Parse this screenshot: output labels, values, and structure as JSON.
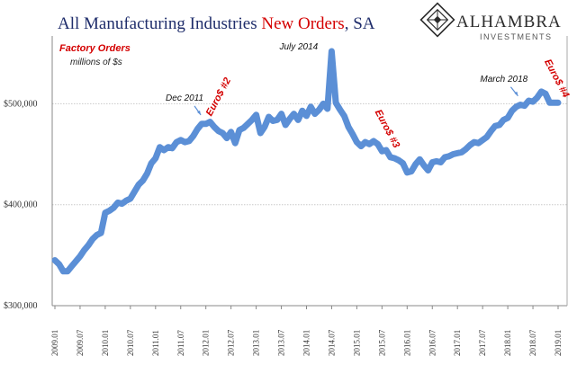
{
  "title": {
    "part1": "All Manufacturing Industries ",
    "accent": "New Orders",
    "part2": ", SA"
  },
  "brand": {
    "name": "ALHAMBRA",
    "sub": "INVESTMENTS",
    "logo_icon": "diamond-lattice-icon"
  },
  "colors": {
    "line": "#5b8fd6",
    "title": "#1f2d6b",
    "accent": "#d40000",
    "grid": "#c9c9c9"
  },
  "chart_data": {
    "type": "line",
    "series": [
      {
        "name": "Factory Orders",
        "unit": "millions of $s",
        "x": [
          "2009.01",
          "2009.02",
          "2009.03",
          "2009.04",
          "2009.05",
          "2009.06",
          "2009.07",
          "2009.08",
          "2009.09",
          "2009.10",
          "2009.11",
          "2009.12",
          "2010.01",
          "2010.02",
          "2010.03",
          "2010.04",
          "2010.05",
          "2010.06",
          "2010.07",
          "2010.08",
          "2010.09",
          "2010.10",
          "2010.11",
          "2010.12",
          "2011.01",
          "2011.02",
          "2011.03",
          "2011.04",
          "2011.05",
          "2011.06",
          "2011.07",
          "2011.08",
          "2011.09",
          "2011.10",
          "2011.11",
          "2011.12",
          "2012.01",
          "2012.02",
          "2012.03",
          "2012.04",
          "2012.05",
          "2012.06",
          "2012.07",
          "2012.08",
          "2012.09",
          "2012.10",
          "2012.11",
          "2012.12",
          "2013.01",
          "2013.02",
          "2013.03",
          "2013.04",
          "2013.05",
          "2013.06",
          "2013.07",
          "2013.08",
          "2013.09",
          "2013.10",
          "2013.11",
          "2013.12",
          "2014.01",
          "2014.02",
          "2014.03",
          "2014.04",
          "2014.05",
          "2014.06",
          "2014.07",
          "2014.08",
          "2014.09",
          "2014.10",
          "2014.11",
          "2014.12",
          "2015.01",
          "2015.02",
          "2015.03",
          "2015.04",
          "2015.05",
          "2015.06",
          "2015.07",
          "2015.08",
          "2015.09",
          "2015.10",
          "2015.11",
          "2015.12",
          "2016.01",
          "2016.02",
          "2016.03",
          "2016.04",
          "2016.05",
          "2016.06",
          "2016.07",
          "2016.08",
          "2016.09",
          "2016.10",
          "2016.11",
          "2016.12",
          "2017.01",
          "2017.02",
          "2017.03",
          "2017.04",
          "2017.05",
          "2017.06",
          "2017.07",
          "2017.08",
          "2017.09",
          "2017.10",
          "2017.11",
          "2017.12",
          "2018.01",
          "2018.02",
          "2018.03",
          "2018.04",
          "2018.05",
          "2018.06",
          "2018.07",
          "2018.08",
          "2018.09",
          "2018.10",
          "2018.11",
          "2018.12",
          "2019.01"
        ],
        "values": [
          345000,
          341000,
          334000,
          334000,
          339000,
          344000,
          349000,
          355000,
          360000,
          366000,
          370000,
          372000,
          392000,
          394000,
          397000,
          402000,
          401000,
          404000,
          406000,
          413000,
          420000,
          424000,
          431000,
          441000,
          446000,
          457000,
          454000,
          457000,
          456000,
          462000,
          464000,
          462000,
          463000,
          468000,
          475000,
          480000,
          480000,
          482000,
          477000,
          473000,
          471000,
          466000,
          472000,
          461000,
          474000,
          476000,
          480000,
          484000,
          489000,
          471000,
          477000,
          487000,
          483000,
          484000,
          490000,
          479000,
          485000,
          490000,
          484000,
          493000,
          488000,
          497000,
          490000,
          494000,
          500000,
          495000,
          552000,
          501000,
          494000,
          488000,
          477000,
          470000,
          462000,
          458000,
          462000,
          460000,
          463000,
          460000,
          453000,
          454000,
          447000,
          446000,
          444000,
          441000,
          432000,
          433000,
          440000,
          445000,
          439000,
          434000,
          442000,
          443000,
          442000,
          447000,
          448000,
          450000,
          451000,
          452000,
          455000,
          459000,
          462000,
          461000,
          464000,
          467000,
          473000,
          478000,
          479000,
          484000,
          486000,
          493000,
          497000,
          499000,
          498000,
          503000,
          502000,
          506000,
          512000,
          510000,
          501000,
          501000,
          501000
        ]
      }
    ],
    "subtitle": "Factory Orders",
    "unit_label": "millions of $s",
    "ylim": [
      300000,
      560000
    ],
    "yticks": [
      300000,
      400000,
      500000
    ],
    "ytick_labels": [
      "$300,000",
      "$400,000",
      "$500,000"
    ],
    "xtick_labels": [
      "2009.01",
      "2009.07",
      "2010.01",
      "2010.07",
      "2011.01",
      "2011.07",
      "2012.01",
      "2012.07",
      "2013.01",
      "2013.07",
      "2014.01",
      "2014.07",
      "2015.01",
      "2015.07",
      "2016.01",
      "2016.07",
      "2017.01",
      "2017.07",
      "2018.01",
      "2018.07",
      "2019.01"
    ],
    "grid": true,
    "annotations": [
      {
        "text": "Dec 2011",
        "x": "2011.12",
        "kind": "date"
      },
      {
        "text": "July 2014",
        "x": "2014.07",
        "kind": "date"
      },
      {
        "text": "March 2018",
        "x": "2018.03",
        "kind": "date"
      },
      {
        "text": "Euro$ #2",
        "x": "2012.04",
        "kind": "euro"
      },
      {
        "text": "Euro$ #3",
        "x": "2015.04",
        "kind": "euro"
      },
      {
        "text": "Euro$ #4",
        "x": "2018.11",
        "kind": "euro"
      }
    ]
  }
}
